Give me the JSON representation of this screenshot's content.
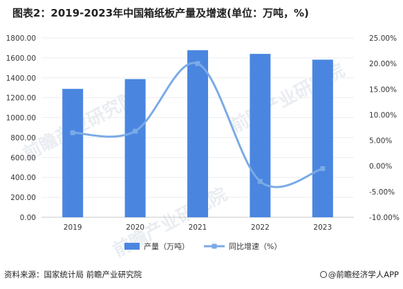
{
  "title": "图表2：2019-2023年中国箱纸板产量及增速(单位：万吨，%)",
  "chart_data": {
    "type": "bar",
    "categories": [
      "2019",
      "2020",
      "2021",
      "2022",
      "2023"
    ],
    "series": [
      {
        "name": "产量（万吨）",
        "type": "bar",
        "axis": "left",
        "color": "#4a86e0",
        "values": [
          1289,
          1387,
          1677,
          1640,
          1582
        ]
      },
      {
        "name": "同比增速（%）",
        "type": "line",
        "axis": "right",
        "color": "#7aaae6",
        "values": [
          6.5,
          6.8,
          20.0,
          -3.0,
          -0.5
        ]
      }
    ],
    "y_left": {
      "ticks": [
        "0.00",
        "200.00",
        "400.00",
        "600.00",
        "800.00",
        "1000.00",
        "1200.00",
        "1400.00",
        "1600.00",
        "1800.00"
      ],
      "lim": [
        0,
        1800
      ]
    },
    "y_right": {
      "ticks": [
        "-10.00%",
        "-5.00%",
        "0.00%",
        "5.00%",
        "10.00%",
        "15.00%",
        "20.00%",
        "25.00%"
      ],
      "lim": [
        -10,
        25
      ]
    },
    "legend_position": "bottom-center"
  },
  "watermark": "前瞻产业研究院",
  "source": "资料来源：国家统计局 前瞻产业研究院",
  "brand": "@前瞻经济学人APP"
}
